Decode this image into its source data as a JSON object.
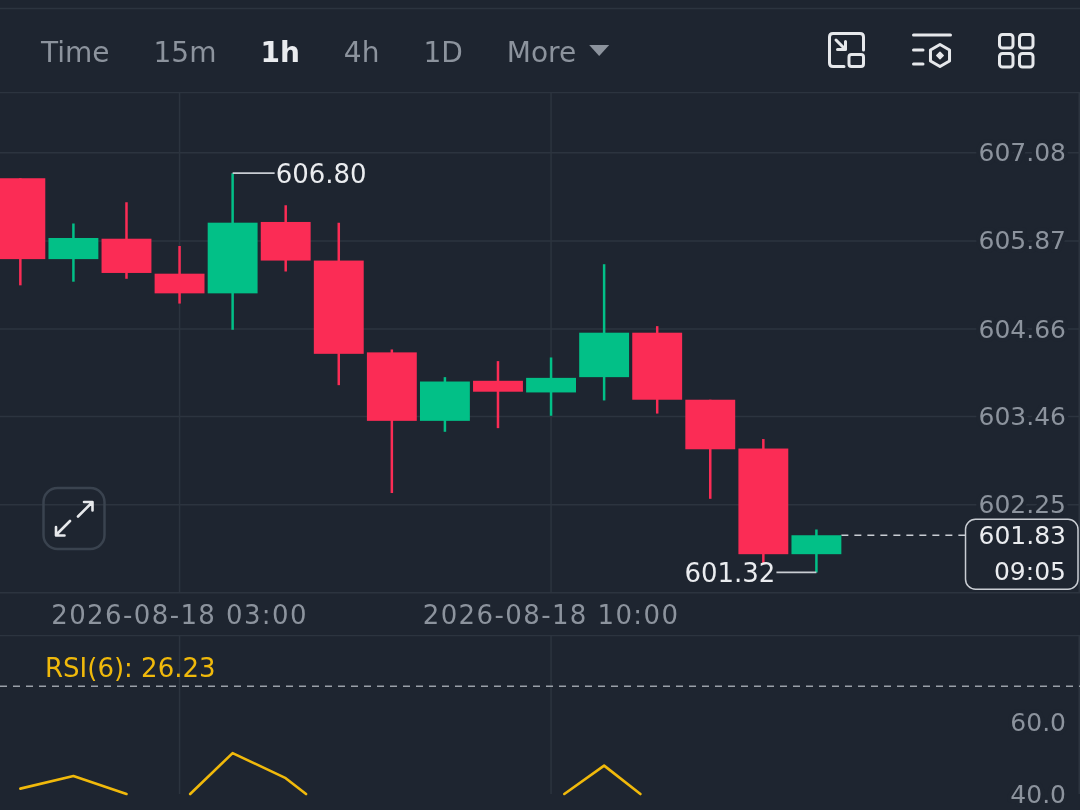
{
  "chart_data": [
    {
      "type": "other",
      "categories": [
        "Time",
        "15m",
        "1h",
        "4h",
        "1D",
        "More"
      ],
      "colors": [
        "#8c939d",
        "#8c939d",
        "#eaecef",
        "#8c939d",
        "#8c939d",
        "#8c939d"
      ]
    },
    {
      "type": "candlestick",
      "x": [
        "2026-08-18T00:00",
        "2026-08-18T01:00",
        "2026-08-18T02:00",
        "2026-08-18T03:00",
        "2026-08-18T04:00",
        "2026-08-18T05:00",
        "2026-08-18T06:00",
        "2026-08-18T07:00",
        "2026-08-18T08:00",
        "2026-08-18T09:00",
        "2026-08-18T10:00",
        "2026-08-18T11:00",
        "2026-08-18T12:00",
        "2026-08-18T13:00",
        "2026-08-18T14:00",
        "2026-08-18T15:00"
      ],
      "ohlc": [
        [
          606.73,
          606.73,
          605.26,
          605.62
        ],
        [
          605.62,
          606.11,
          605.31,
          605.91
        ],
        [
          605.9,
          606.4,
          605.35,
          605.43
        ],
        [
          605.42,
          605.8,
          605.01,
          605.15
        ],
        [
          605.15,
          606.8,
          604.65,
          606.12
        ],
        [
          606.13,
          606.36,
          605.45,
          605.6
        ],
        [
          605.6,
          606.12,
          603.89,
          604.32
        ],
        [
          604.34,
          604.38,
          602.41,
          603.4
        ],
        [
          603.4,
          604.0,
          603.25,
          603.94
        ],
        [
          603.95,
          604.22,
          603.3,
          603.8
        ],
        [
          603.79,
          604.27,
          603.47,
          603.99
        ],
        [
          604.0,
          605.55,
          603.68,
          604.61
        ],
        [
          604.61,
          604.7,
          603.5,
          603.69
        ],
        [
          603.69,
          603.69,
          602.33,
          603.01
        ],
        [
          603.02,
          603.15,
          601.45,
          601.57
        ],
        [
          601.57,
          601.91,
          601.32,
          601.83
        ]
      ],
      "colors": [
        "#fb2c55",
        "#02c087",
        "#fb2c55",
        "#fb2c55",
        "#02c087",
        "#fb2c55",
        "#fb2c55",
        "#fb2c55",
        "#02c087",
        "#fb2c55",
        "#02c087",
        "#02c087",
        "#fb2c55",
        "#fb2c55",
        "#fb2c55",
        "#02c087"
      ],
      "xlim": [
        "2026-08-17T23:37",
        "2026-08-18T19:58"
      ],
      "xticks": [
        {
          "value": "2026-08-18T03:00",
          "label": "2026-08-18 03:00"
        },
        {
          "value": "2026-08-18T10:00",
          "label": "2026-08-18 10:00"
        }
      ],
      "ylim": [
        601.04,
        607.9
      ],
      "yticks": [
        607.08,
        605.87,
        604.66,
        603.46,
        602.25
      ],
      "grid": true,
      "annotations": [
        {
          "text": "606.80",
          "x": "2026-08-18T04:00",
          "y": 606.8
        },
        {
          "text": "601.32",
          "x": "2026-08-18T15:00",
          "y": 601.32
        },
        "09:05"
      ],
      "ref_lines": [
        {
          "axis": "y",
          "value": 601.83,
          "label": "601.83",
          "line_style": "dashed",
          "color": "#c9cdd3"
        }
      ]
    },
    {
      "type": "line",
      "series": [
        {
          "name": "RSI(6): 26.23",
          "color": "#f0b90b",
          "x": [
            "2026-08-18T00:00",
            "2026-08-18T01:00",
            "2026-08-18T02:00",
            "2026-08-18T02:40",
            "2026-08-18T03:12",
            "2026-08-18T04:00",
            "2026-08-18T05:00",
            "2026-08-18T05:23",
            "2026-08-18T08:00",
            "2026-08-18T10:15",
            "2026-08-18T11:00",
            "2026-08-18T11:41"
          ],
          "values": [
            41.5,
            45.0,
            40.0,
            null,
            40.0,
            51.4,
            44.4,
            40.0,
            null,
            40.0,
            47.9,
            40.0
          ]
        }
      ],
      "xlim": [
        "2026-08-17T23:37",
        "2026-08-18T19:58"
      ],
      "xticks": [
        {
          "value": "2026-08-18T03:00",
          "label": null
        },
        {
          "value": "2026-08-18T10:00",
          "label": null
        }
      ],
      "ylim": [
        40,
        84
      ],
      "yticks": [
        {
          "value": 60,
          "label": "60.0"
        },
        {
          "value": 40,
          "label": "40.0"
        }
      ],
      "grid": "x",
      "tick_labels": "y",
      "legend": "top left",
      "ref_lines": [
        {
          "axis": "y",
          "value": 70,
          "line_style": "dashed",
          "color": "#9aa0a8"
        }
      ]
    }
  ]
}
